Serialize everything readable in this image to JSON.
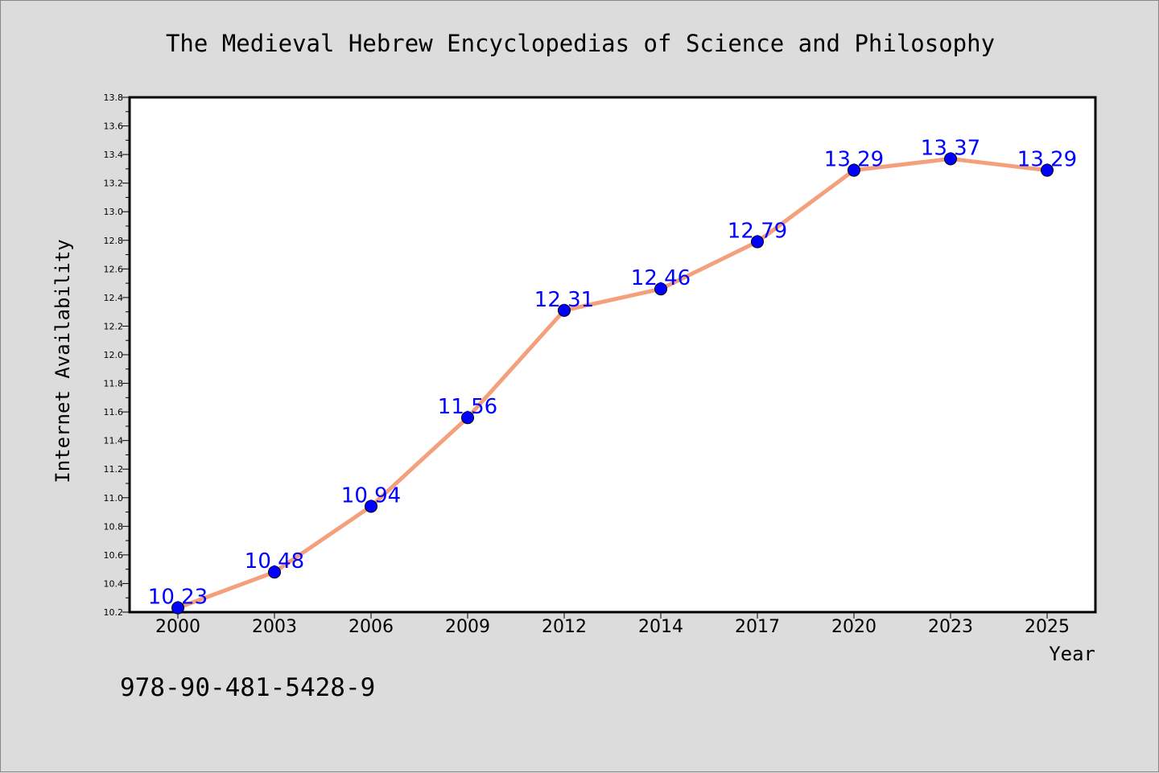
{
  "chart_data": {
    "type": "line",
    "title": "The Medieval Hebrew Encyclopedias of Science and Philosophy",
    "xlabel": "Year",
    "ylabel": "Internet Availability",
    "categories": [
      "2000",
      "2003",
      "2006",
      "2009",
      "2012",
      "2014",
      "2017",
      "2020",
      "2023",
      "2025"
    ],
    "values": [
      10.23,
      10.48,
      10.94,
      11.56,
      12.31,
      12.46,
      12.79,
      13.29,
      13.37,
      13.29
    ],
    "data_labels": [
      "10.23",
      "10.48",
      "10.94",
      "11.56",
      "12.31",
      "12.46",
      "12.79",
      "13.29",
      "13.37",
      "13.29"
    ],
    "ylim": [
      10.2,
      13.8
    ],
    "yticks": [
      "10.2",
      "10.4",
      "10.6",
      "10.8",
      "11.0",
      "11.2",
      "11.4",
      "11.6",
      "11.8",
      "12.0",
      "12.2",
      "12.4",
      "12.6",
      "12.8",
      "13.0",
      "13.2",
      "13.4",
      "13.6",
      "13.8"
    ],
    "grid": false,
    "legend": "none",
    "colors": {
      "line": "#f4a07c",
      "marker": "#0000ff",
      "label": "#0000ff",
      "background": "#dcdcdc",
      "plot_background": "#ffffff"
    }
  },
  "footer": {
    "isbn": "978-90-481-5428-9"
  }
}
